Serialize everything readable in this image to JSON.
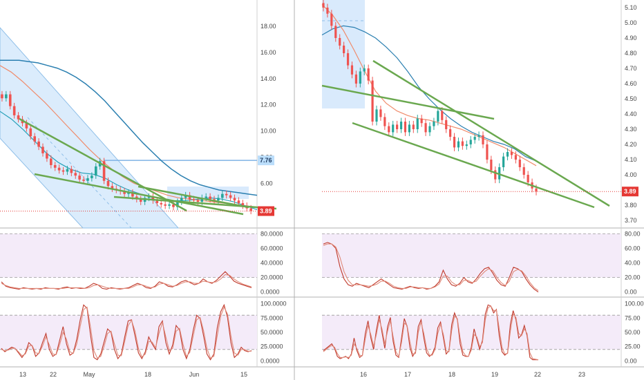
{
  "colors": {
    "candle_up": "#26a69a",
    "candle_down": "#ef5350",
    "ma_fast": "#f08b6b",
    "ma_teal": "#26a0b8",
    "ma_slow": "#2a7fb0",
    "trendline": "#6aa84f",
    "channel_fill": "#cfe5fb",
    "oscillator_band": "#f4ebf9",
    "osc_main": "#c0392b",
    "osc_signal": "#e08a7a",
    "price_badge": "#e53935",
    "level_badge": "#bbdefb",
    "axis_text": "#444444"
  },
  "chart_data": [
    {
      "panel": "left-price",
      "type": "candlestick",
      "x_tick_labels": [
        "13",
        "22",
        "May",
        "18",
        "Jun",
        "15"
      ],
      "y_tick_labels": [
        "6.00",
        "8.00",
        "10.00",
        "12.00",
        "14.00",
        "16.00",
        "18.00"
      ],
      "ylim": [
        2.6,
        20
      ],
      "last_price": 3.89,
      "last_price_label": "3.89",
      "horizontal_level": 7.76,
      "horizontal_level_label": "7.76",
      "closes": [
        12.5,
        12.8,
        11.9,
        11.2,
        10.9,
        10.6,
        10.2,
        9.6,
        9.2,
        8.8,
        8.3,
        7.9,
        7.4,
        7.2,
        7.0,
        6.9,
        7.1,
        6.8,
        6.6,
        6.3,
        6.2,
        6.4,
        6.6,
        7.3,
        7.7,
        6.2,
        5.8,
        5.6,
        5.5,
        5.4,
        5.2,
        5.3,
        5.0,
        4.8,
        4.6,
        4.9,
        5.0,
        4.7,
        4.5,
        4.4,
        4.3,
        4.4,
        4.2,
        4.6,
        4.9,
        5.1,
        4.8,
        4.7,
        4.6,
        4.9,
        5.0,
        4.8,
        4.7,
        4.9,
        5.2,
        5.1,
        4.9,
        4.7,
        4.5,
        4.3,
        4.1,
        3.9
      ],
      "series": [
        {
          "values": [
            15.4,
            15.4,
            15.4,
            15.3,
            15.2,
            15.0,
            14.8,
            14.5,
            14.1,
            13.6,
            13.0,
            12.3,
            11.5,
            10.7,
            9.9,
            9.1,
            8.4,
            7.7,
            7.1,
            6.6,
            6.2,
            5.9,
            5.7,
            5.5,
            5.4,
            5.3,
            5.2,
            5.1
          ]
        },
        {
          "values": [
            15.0,
            14.5,
            13.8,
            13.0,
            12.2,
            11.3,
            10.4,
            9.5,
            8.6,
            7.8,
            7.1,
            6.5,
            6.0,
            5.7,
            5.4,
            5.1,
            4.9,
            4.8,
            4.7,
            4.6,
            4.5,
            4.4,
            4.3,
            4.2
          ]
        },
        {
          "values": [
            11.5,
            10.9,
            10.1,
            9.2,
            8.3,
            7.6,
            7.1,
            6.8,
            6.7,
            6.4,
            5.9,
            5.5,
            5.2,
            5.0,
            4.8,
            4.7,
            4.7,
            4.8,
            4.9,
            4.8,
            4.6,
            4.3,
            4.0
          ]
        }
      ]
    },
    {
      "panel": "right-price",
      "type": "candlestick",
      "x_tick_labels": [
        "16",
        "17",
        "18",
        "19",
        "22",
        "23"
      ],
      "y_tick_labels": [
        "3.70",
        "3.80",
        "3.90",
        "4.00",
        "4.10",
        "4.20",
        "4.30",
        "4.40",
        "4.50",
        "4.60",
        "4.70",
        "4.80",
        "4.90",
        "5.00",
        "5.10"
      ],
      "ylim": [
        3.65,
        5.15
      ],
      "last_price": 3.89,
      "last_price_label": "3.89",
      "closes": [
        5.1,
        5.06,
        4.98,
        4.9,
        4.85,
        4.8,
        4.72,
        4.66,
        4.6,
        4.68,
        4.7,
        4.62,
        4.35,
        4.43,
        4.38,
        4.32,
        4.28,
        4.33,
        4.3,
        4.35,
        4.28,
        4.33,
        4.3,
        4.37,
        4.34,
        4.28,
        4.32,
        4.35,
        4.42,
        4.36,
        4.3,
        4.25,
        4.18,
        4.22,
        4.19,
        4.2,
        4.23,
        4.25,
        4.26,
        4.2,
        4.1,
        4.03,
        3.97,
        4.05,
        4.12,
        4.15,
        4.13,
        4.1,
        4.05,
        4.0,
        3.95,
        3.91,
        3.89
      ],
      "series": [
        {
          "values": [
            4.92,
            4.96,
            4.98,
            4.97,
            4.94,
            4.9,
            4.84,
            4.77,
            4.68,
            4.58,
            4.5,
            4.43,
            4.37,
            4.32,
            4.28,
            4.25,
            4.22,
            4.2,
            4.17,
            4.12,
            4.09
          ]
        },
        {
          "values": [
            5.12,
            5.05,
            4.95,
            4.82,
            4.68,
            4.55,
            4.47,
            4.42,
            4.39,
            4.37,
            4.36,
            4.34,
            4.32,
            4.3,
            4.27,
            4.24,
            4.21,
            4.18,
            4.14,
            4.1,
            4.06
          ]
        }
      ]
    },
    {
      "panel": "left-oscillator-1",
      "type": "line",
      "y_tick_labels": [
        "0.0000",
        "20.0000",
        "40.0000",
        "60.0000",
        "80.0000"
      ],
      "ylim": [
        -5,
        85
      ],
      "series": [
        {
          "values": [
            14,
            8,
            6,
            5,
            4,
            6,
            5,
            4,
            5,
            4,
            6,
            5,
            5,
            4,
            6,
            7,
            5,
            6,
            5,
            5,
            8,
            12,
            10,
            5,
            4,
            6,
            5,
            4,
            5,
            6,
            9,
            12,
            10,
            6,
            5,
            8,
            14,
            12,
            8,
            7,
            10,
            14,
            16,
            13,
            10,
            12,
            18,
            14,
            12,
            16,
            22,
            28,
            22,
            15,
            12,
            10,
            8,
            6
          ]
        },
        {
          "values": [
            12,
            9,
            7,
            6,
            5,
            5,
            5,
            5,
            5,
            5,
            5,
            5,
            5,
            5,
            5,
            6,
            6,
            6,
            6,
            5,
            6,
            9,
            10,
            8,
            6,
            5,
            5,
            5,
            5,
            5,
            7,
            10,
            10,
            8,
            6,
            7,
            11,
            12,
            10,
            8,
            9,
            12,
            14,
            14,
            12,
            12,
            15,
            14,
            13,
            14,
            18,
            24,
            23,
            18,
            14,
            11,
            9,
            7
          ]
        }
      ]
    },
    {
      "panel": "right-oscillator-1",
      "type": "line",
      "y_tick_labels": [
        "0.00",
        "20.00",
        "40.00",
        "60.00",
        "80.00"
      ],
      "ylim": [
        -5,
        85
      ],
      "series": [
        {
          "values": [
            66,
            68,
            66,
            60,
            35,
            18,
            10,
            8,
            12,
            10,
            8,
            6,
            10,
            14,
            18,
            14,
            10,
            6,
            5,
            4,
            6,
            8,
            6,
            5,
            6,
            4,
            5,
            8,
            14,
            30,
            18,
            10,
            8,
            12,
            20,
            14,
            12,
            18,
            26,
            32,
            34,
            26,
            16,
            10,
            8,
            20,
            34,
            32,
            28,
            18,
            10,
            4,
            0
          ]
        },
        {
          "values": [
            64,
            66,
            66,
            62,
            48,
            28,
            16,
            10,
            10,
            10,
            9,
            8,
            9,
            11,
            15,
            15,
            12,
            8,
            6,
            5,
            5,
            7,
            7,
            6,
            6,
            5,
            5,
            7,
            11,
            22,
            22,
            14,
            10,
            10,
            16,
            16,
            13,
            15,
            22,
            28,
            32,
            29,
            20,
            13,
            9,
            15,
            28,
            31,
            29,
            22,
            13,
            6,
            2
          ]
        }
      ]
    },
    {
      "panel": "left-oscillator-2",
      "type": "line",
      "y_tick_labels": [
        "0.0000",
        "25.0000",
        "50.0000",
        "75.0000",
        "100.0000"
      ],
      "ylim": [
        -8,
        108
      ],
      "series": [
        {
          "values": [
            22,
            16,
            20,
            24,
            22,
            14,
            6,
            14,
            32,
            26,
            8,
            14,
            32,
            48,
            20,
            8,
            12,
            36,
            60,
            30,
            10,
            14,
            38,
            72,
            98,
            92,
            46,
            6,
            2,
            12,
            34,
            56,
            50,
            20,
            4,
            12,
            42,
            70,
            72,
            44,
            14,
            4,
            16,
            42,
            30,
            20,
            60,
            70,
            32,
            12,
            28,
            62,
            54,
            20,
            4,
            20,
            54,
            80,
            74,
            44,
            12,
            2,
            12,
            58,
            86,
            98,
            76,
            32,
            6,
            12,
            24,
            18,
            16,
            18
          ]
        },
        {
          "values": [
            20,
            18,
            19,
            22,
            22,
            16,
            9,
            12,
            26,
            27,
            14,
            13,
            26,
            42,
            28,
            12,
            11,
            28,
            50,
            38,
            16,
            13,
            30,
            60,
            90,
            94,
            60,
            18,
            5,
            8,
            26,
            48,
            52,
            30,
            10,
            9,
            34,
            62,
            71,
            52,
            22,
            7,
            12,
            34,
            33,
            23,
            48,
            67,
            42,
            18,
            22,
            52,
            57,
            30,
            8,
            15,
            44,
            72,
            76,
            53,
            22,
            5,
            8,
            44,
            78,
            94,
            82,
            44,
            14,
            10,
            20,
            20,
            17,
            17
          ]
        }
      ]
    },
    {
      "panel": "right-oscillator-2",
      "type": "line",
      "y_tick_labels": [
        "0.00",
        "25.00",
        "50.00",
        "75.00",
        "100.00"
      ],
      "ylim": [
        -8,
        108
      ],
      "series": [
        {
          "values": [
            18,
            22,
            26,
            30,
            22,
            8,
            4,
            6,
            8,
            4,
            12,
            40,
            18,
            6,
            10,
            48,
            70,
            40,
            20,
            54,
            80,
            50,
            22,
            60,
            76,
            34,
            10,
            6,
            40,
            74,
            60,
            24,
            8,
            16,
            60,
            72,
            40,
            14,
            8,
            12,
            24,
            58,
            68,
            40,
            12,
            18,
            64,
            84,
            72,
            30,
            10,
            8,
            8,
            24,
            56,
            38,
            20,
            36,
            82,
            98,
            96,
            84,
            90,
            44,
            16,
            10,
            14,
            64,
            88,
            72,
            40,
            46,
            62,
            44,
            6,
            2,
            2,
            2
          ]
        },
        {
          "values": [
            16,
            20,
            24,
            27,
            24,
            13,
            6,
            6,
            7,
            6,
            10,
            30,
            22,
            10,
            9,
            38,
            62,
            46,
            26,
            46,
            72,
            56,
            30,
            52,
            70,
            42,
            16,
            8,
            32,
            66,
            62,
            34,
            12,
            13,
            50,
            68,
            48,
            22,
            10,
            10,
            20,
            48,
            64,
            46,
            18,
            16,
            54,
            78,
            74,
            40,
            16,
            9,
            8,
            19,
            46,
            42,
            25,
            32,
            72,
            93,
            96,
            88,
            89,
            56,
            24,
            12,
            13,
            52,
            82,
            76,
            48,
            44,
            56,
            48,
            14,
            4,
            3,
            2
          ]
        }
      ]
    }
  ]
}
